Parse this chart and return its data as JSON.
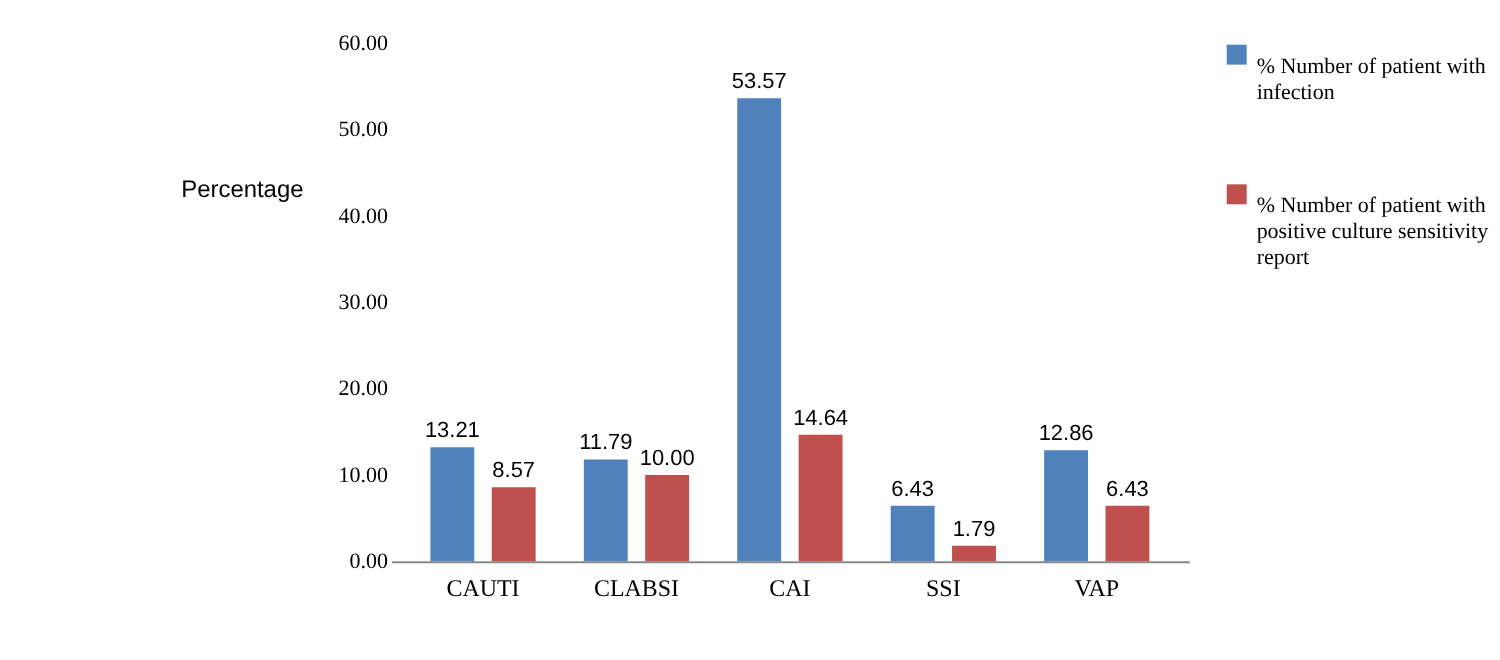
{
  "chart_data": {
    "type": "bar",
    "ylabel": "Percentage",
    "categories": [
      "CAUTI",
      "CLABSI",
      "CAI",
      "SSI",
      "VAP"
    ],
    "series": [
      {
        "name": "% Number of patient with infection",
        "color": "#4f81bd",
        "values": [
          13.21,
          11.79,
          53.57,
          6.43,
          12.86
        ],
        "value_labels": [
          "13.21",
          "11.79",
          "53.57",
          "6.43",
          "12.86"
        ]
      },
      {
        "name": "% Number of patient with positive culture sensitivity report",
        "color": "#c0504d",
        "values": [
          8.57,
          10.0,
          14.64,
          1.79,
          6.43
        ],
        "value_labels": [
          "8.57",
          "10.00",
          "14.64",
          "1.79",
          "6.43"
        ]
      }
    ],
    "ylim": [
      0,
      60
    ],
    "yticks": [
      {
        "value": 0,
        "label": "0.00"
      },
      {
        "value": 10,
        "label": "10.00"
      },
      {
        "value": 20,
        "label": "20.00"
      },
      {
        "value": 30,
        "label": "30.00"
      },
      {
        "value": 40,
        "label": "40.00"
      },
      {
        "value": 50,
        "label": "50.00"
      },
      {
        "value": 60,
        "label": "60.00"
      }
    ],
    "grid": false,
    "legend": "right"
  }
}
